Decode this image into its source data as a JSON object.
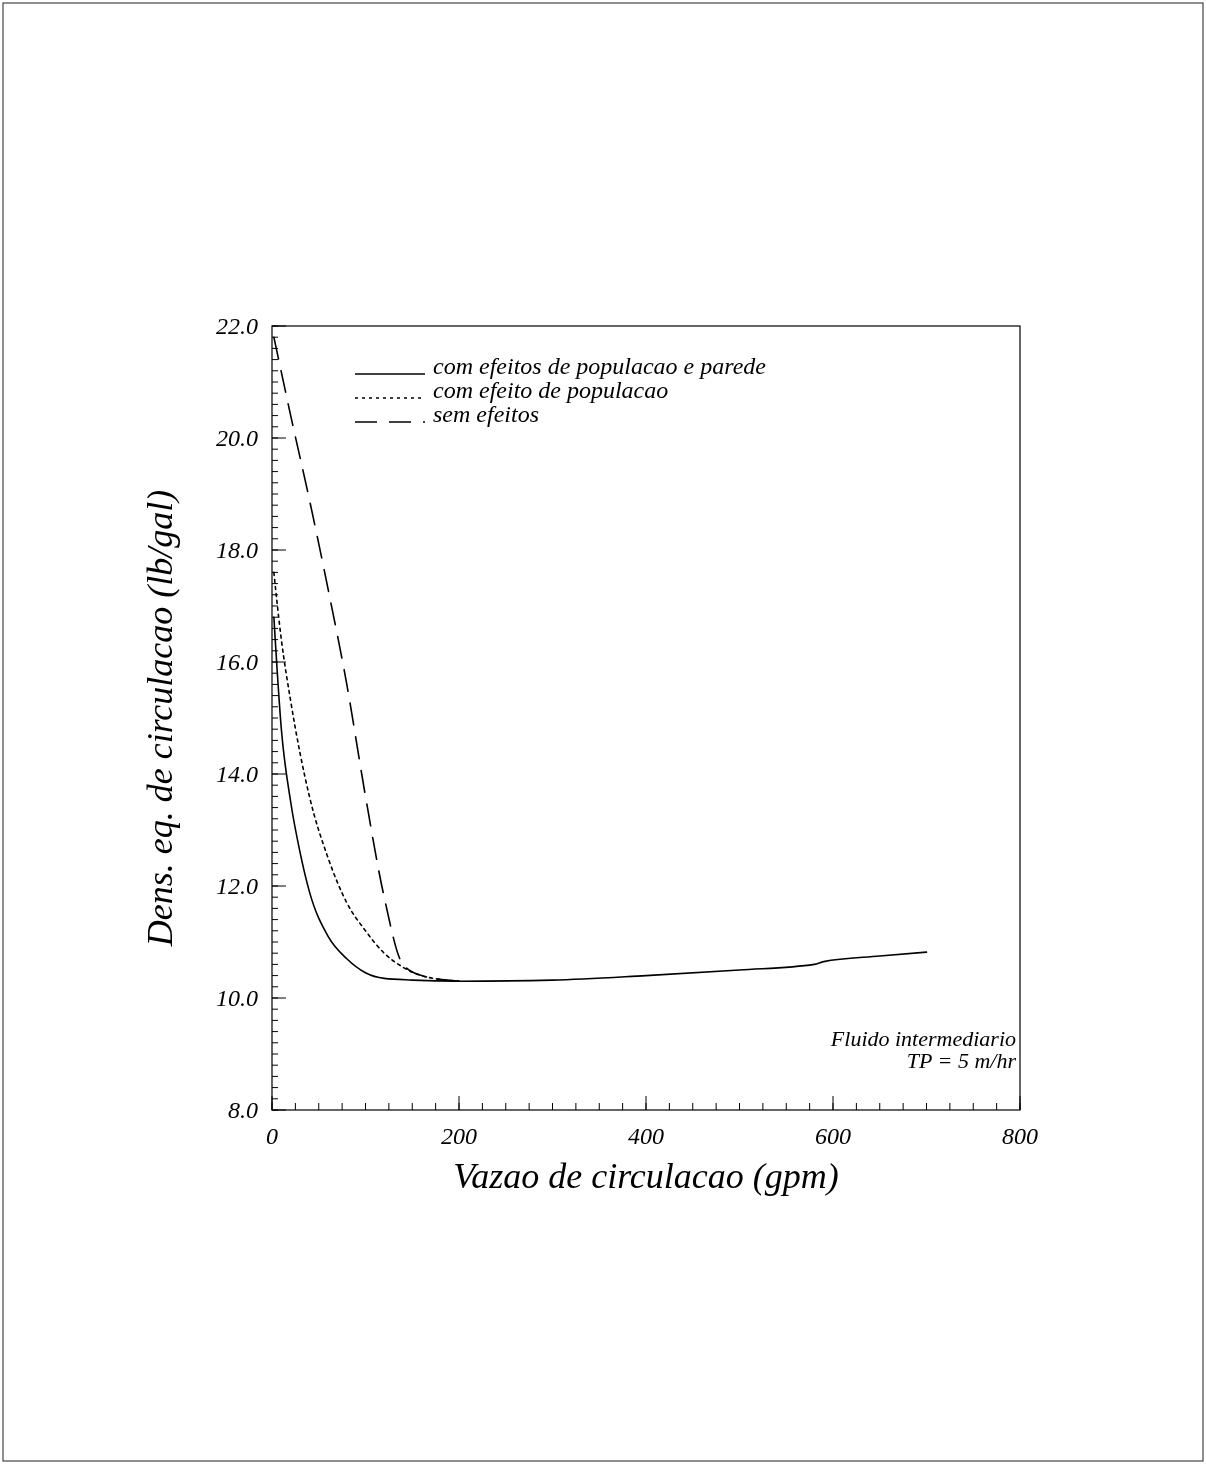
{
  "chart_data": {
    "type": "line",
    "xlabel": "Vazao de circulacao (gpm)",
    "ylabel": "Dens. eq. de circulacao (lb/gal)",
    "xlim": [
      0,
      800
    ],
    "xticks": [
      0,
      200,
      400,
      600,
      800
    ],
    "ylim": [
      8,
      22
    ],
    "yticks": [
      {
        "value": 8,
        "label": "8.0"
      },
      {
        "value": 10,
        "label": "10.0"
      },
      {
        "value": 12,
        "label": "12.0"
      },
      {
        "value": 14,
        "label": "14.0"
      },
      {
        "value": 16,
        "label": "16.0"
      },
      {
        "value": 18,
        "label": "18.0"
      },
      {
        "value": 20,
        "label": "20.0"
      },
      {
        "value": 22,
        "label": "22.0"
      }
    ],
    "grid": false,
    "legend": "top",
    "annotations": [
      "Fluido intermediario",
      "TP = 5 m/hr"
    ],
    "series": [
      {
        "name": "com efeitos de populacao e parede",
        "color": "#000000",
        "line_style": "solid",
        "x": [
          2,
          10,
          20,
          30,
          40,
          60,
          80,
          100,
          120,
          150,
          200,
          300,
          400,
          500,
          580,
          590,
          650,
          700
        ],
        "values": [
          16.8,
          14.8,
          13.5,
          12.6,
          11.9,
          11.1,
          10.7,
          10.45,
          10.35,
          10.32,
          10.3,
          10.32,
          10.4,
          10.5,
          10.6,
          10.65,
          10.75,
          10.82
        ]
      },
      {
        "name": "com efeito de populacao",
        "color": "#000000",
        "line_style": "dotted",
        "x": [
          2,
          10,
          20,
          40,
          60,
          80,
          100,
          120,
          140,
          160,
          200
        ],
        "values": [
          17.6,
          16.4,
          15.3,
          13.6,
          12.5,
          11.7,
          11.2,
          10.8,
          10.55,
          10.4,
          10.3
        ]
      },
      {
        "name": "sem efeitos",
        "color": "#000000",
        "line_style": "dashed",
        "x": [
          2,
          20,
          40,
          60,
          80,
          100,
          120,
          140,
          160,
          200
        ],
        "values": [
          21.8,
          20.4,
          18.9,
          17.3,
          15.6,
          13.6,
          11.8,
          10.6,
          10.4,
          10.3
        ]
      }
    ]
  }
}
